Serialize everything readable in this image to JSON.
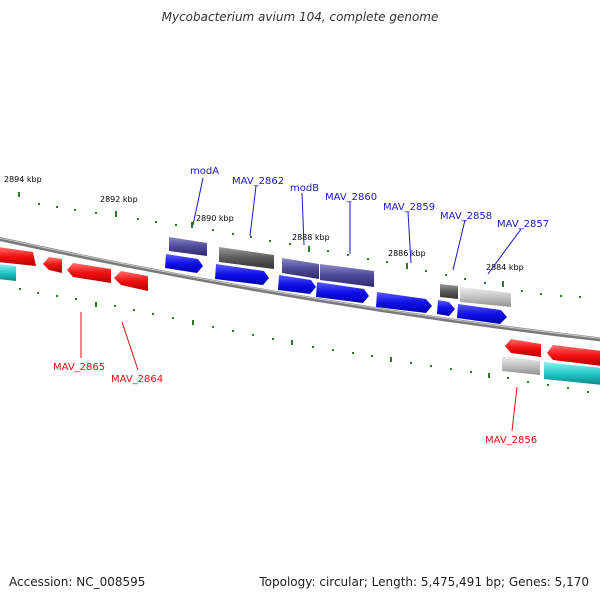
{
  "title": "Mycobacterium avium 104, complete genome",
  "footer": {
    "accession": "Accession: NC_008595",
    "summary": "Topology: circular; Length: 5,475,491 bp; Genes: 5,170"
  },
  "colors": {
    "forward_label": "#1a1ab8",
    "reverse_label": "#dd1111",
    "tick": "#2a7a2a",
    "backbone": "#8a8a8a"
  },
  "ticks": [
    {
      "label": "2894 kbp"
    },
    {
      "label": "2892 kbp"
    },
    {
      "label": "2890 kbp"
    },
    {
      "label": "2888 kbp"
    },
    {
      "label": "2886 kbp"
    },
    {
      "label": "2884 kbp"
    }
  ],
  "forward_labels": [
    {
      "text": "modA"
    },
    {
      "text": "MAV_2862"
    },
    {
      "text": "modB"
    },
    {
      "text": "MAV_2860"
    },
    {
      "text": "MAV_2859"
    },
    {
      "text": "MAV_2858"
    },
    {
      "text": "MAV_2857"
    }
  ],
  "reverse_labels": [
    {
      "text": "MAV_2865"
    },
    {
      "text": "MAV_2864"
    },
    {
      "text": "MAV_2856"
    }
  ]
}
